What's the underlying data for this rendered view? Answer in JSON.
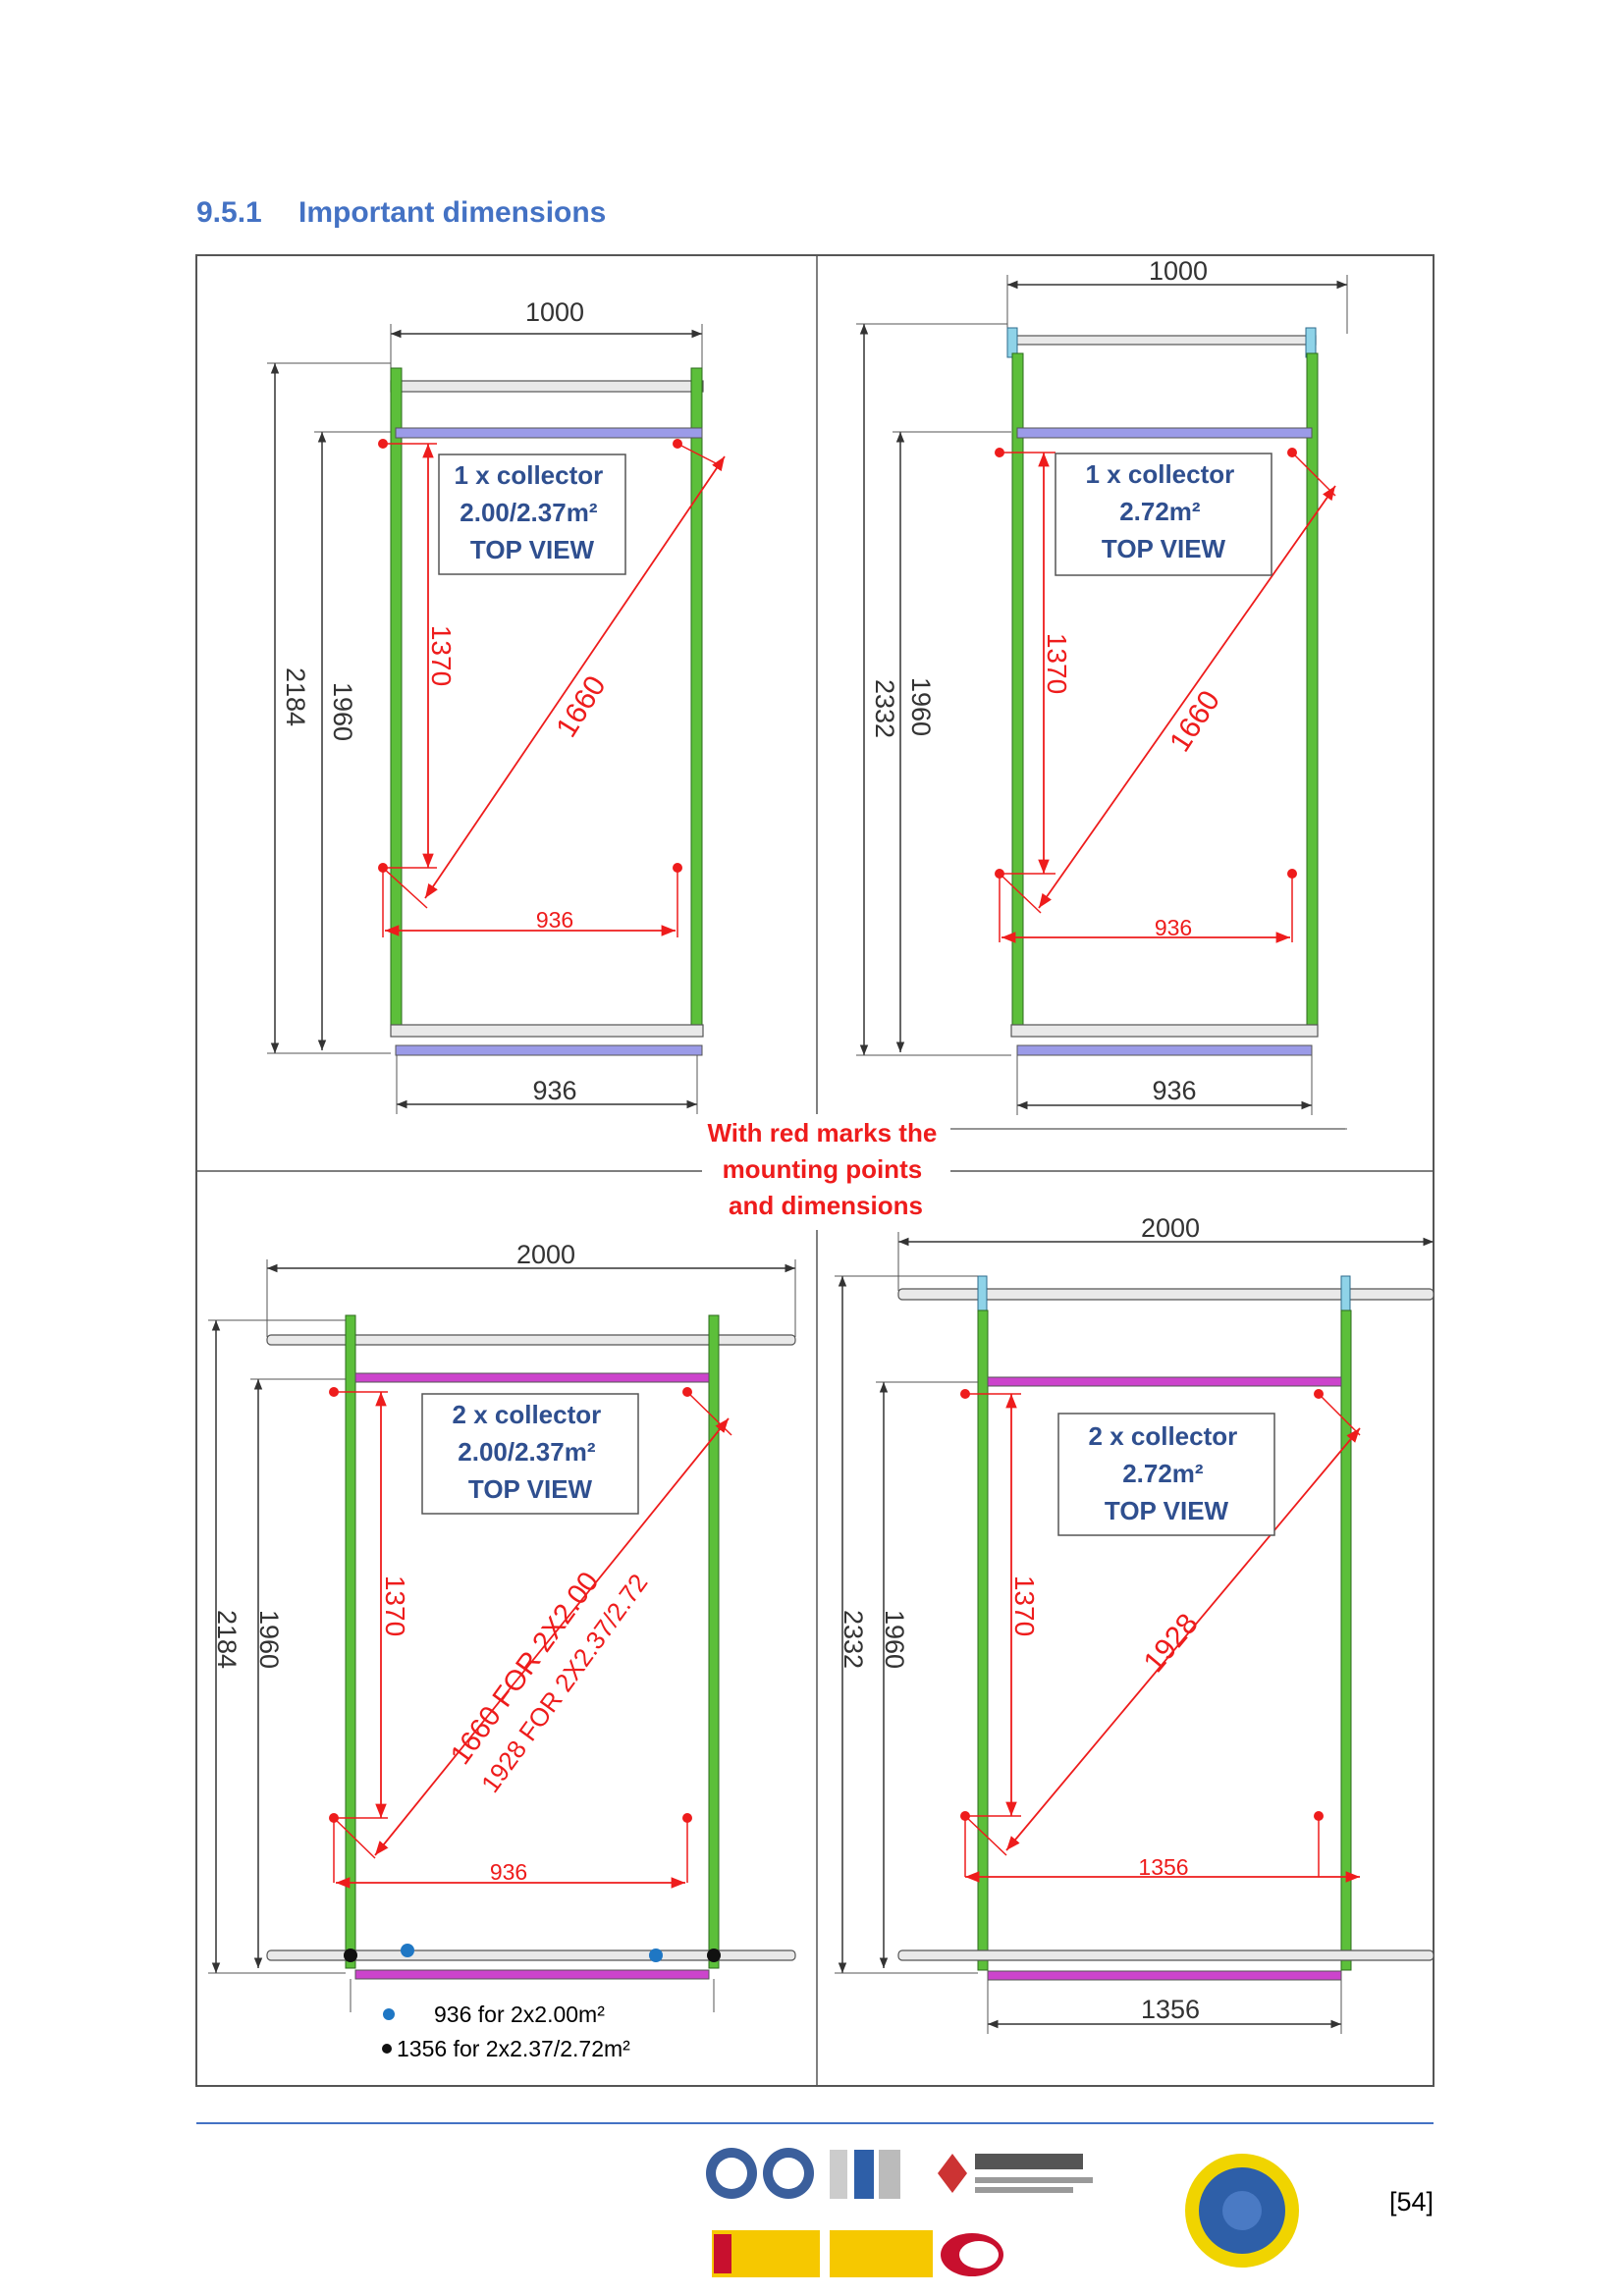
{
  "section": {
    "number": "9.5.1",
    "title": "Important dimensions"
  },
  "panels": {
    "top_left": {
      "info": [
        "1 x collector",
        "2.00/2.37m²",
        "TOP VIEW"
      ],
      "width": "1000",
      "height_total": "2184",
      "height_frame": "1960",
      "mount_vertical": "1370",
      "diagonal": "1660",
      "mount_horizontal": "936",
      "bottom_width": "936"
    },
    "top_right": {
      "info": [
        "1 x collector",
        "2.72m²",
        "TOP VIEW"
      ],
      "width": "1000",
      "height_total": "2332",
      "height_frame": "1960",
      "mount_vertical": "1370",
      "diagonal": "1660",
      "mount_horizontal": "936",
      "bottom_width": "936"
    },
    "bottom_left": {
      "info": [
        "2 x collector",
        "2.00/2.37m²",
        "TOP VIEW"
      ],
      "width": "2000",
      "height_total": "2184",
      "height_frame": "1960",
      "mount_vertical": "1370",
      "diagonal_a": "1660 FOR 2X2.00",
      "diagonal_b": "1928 FOR 2X2.37/2.72",
      "mount_horizontal": "936",
      "legend": [
        "936 for 2x2.00m²",
        "1356 for 2x2.37/2.72m²"
      ]
    },
    "bottom_right": {
      "info": [
        "2 x collector",
        "2.72m²",
        "TOP VIEW"
      ],
      "width": "2000",
      "height_total": "2332",
      "height_frame": "1960",
      "mount_vertical": "1370",
      "diagonal": "1928",
      "mount_horizontal": "1356",
      "bottom_width": "1356"
    }
  },
  "center_note": [
    "With red marks the",
    "mounting points",
    "and dimensions"
  ],
  "page_number": "[54]",
  "colors": {
    "heading": "#4472c4",
    "frame_green": "#5cbf3a",
    "rail_violet": "#9b9be8",
    "rail_magenta": "#cc44cc",
    "dimension_red": "#ee1c1c",
    "info_text": "#2f4f8f",
    "legend_blue": "#1f77c4"
  }
}
